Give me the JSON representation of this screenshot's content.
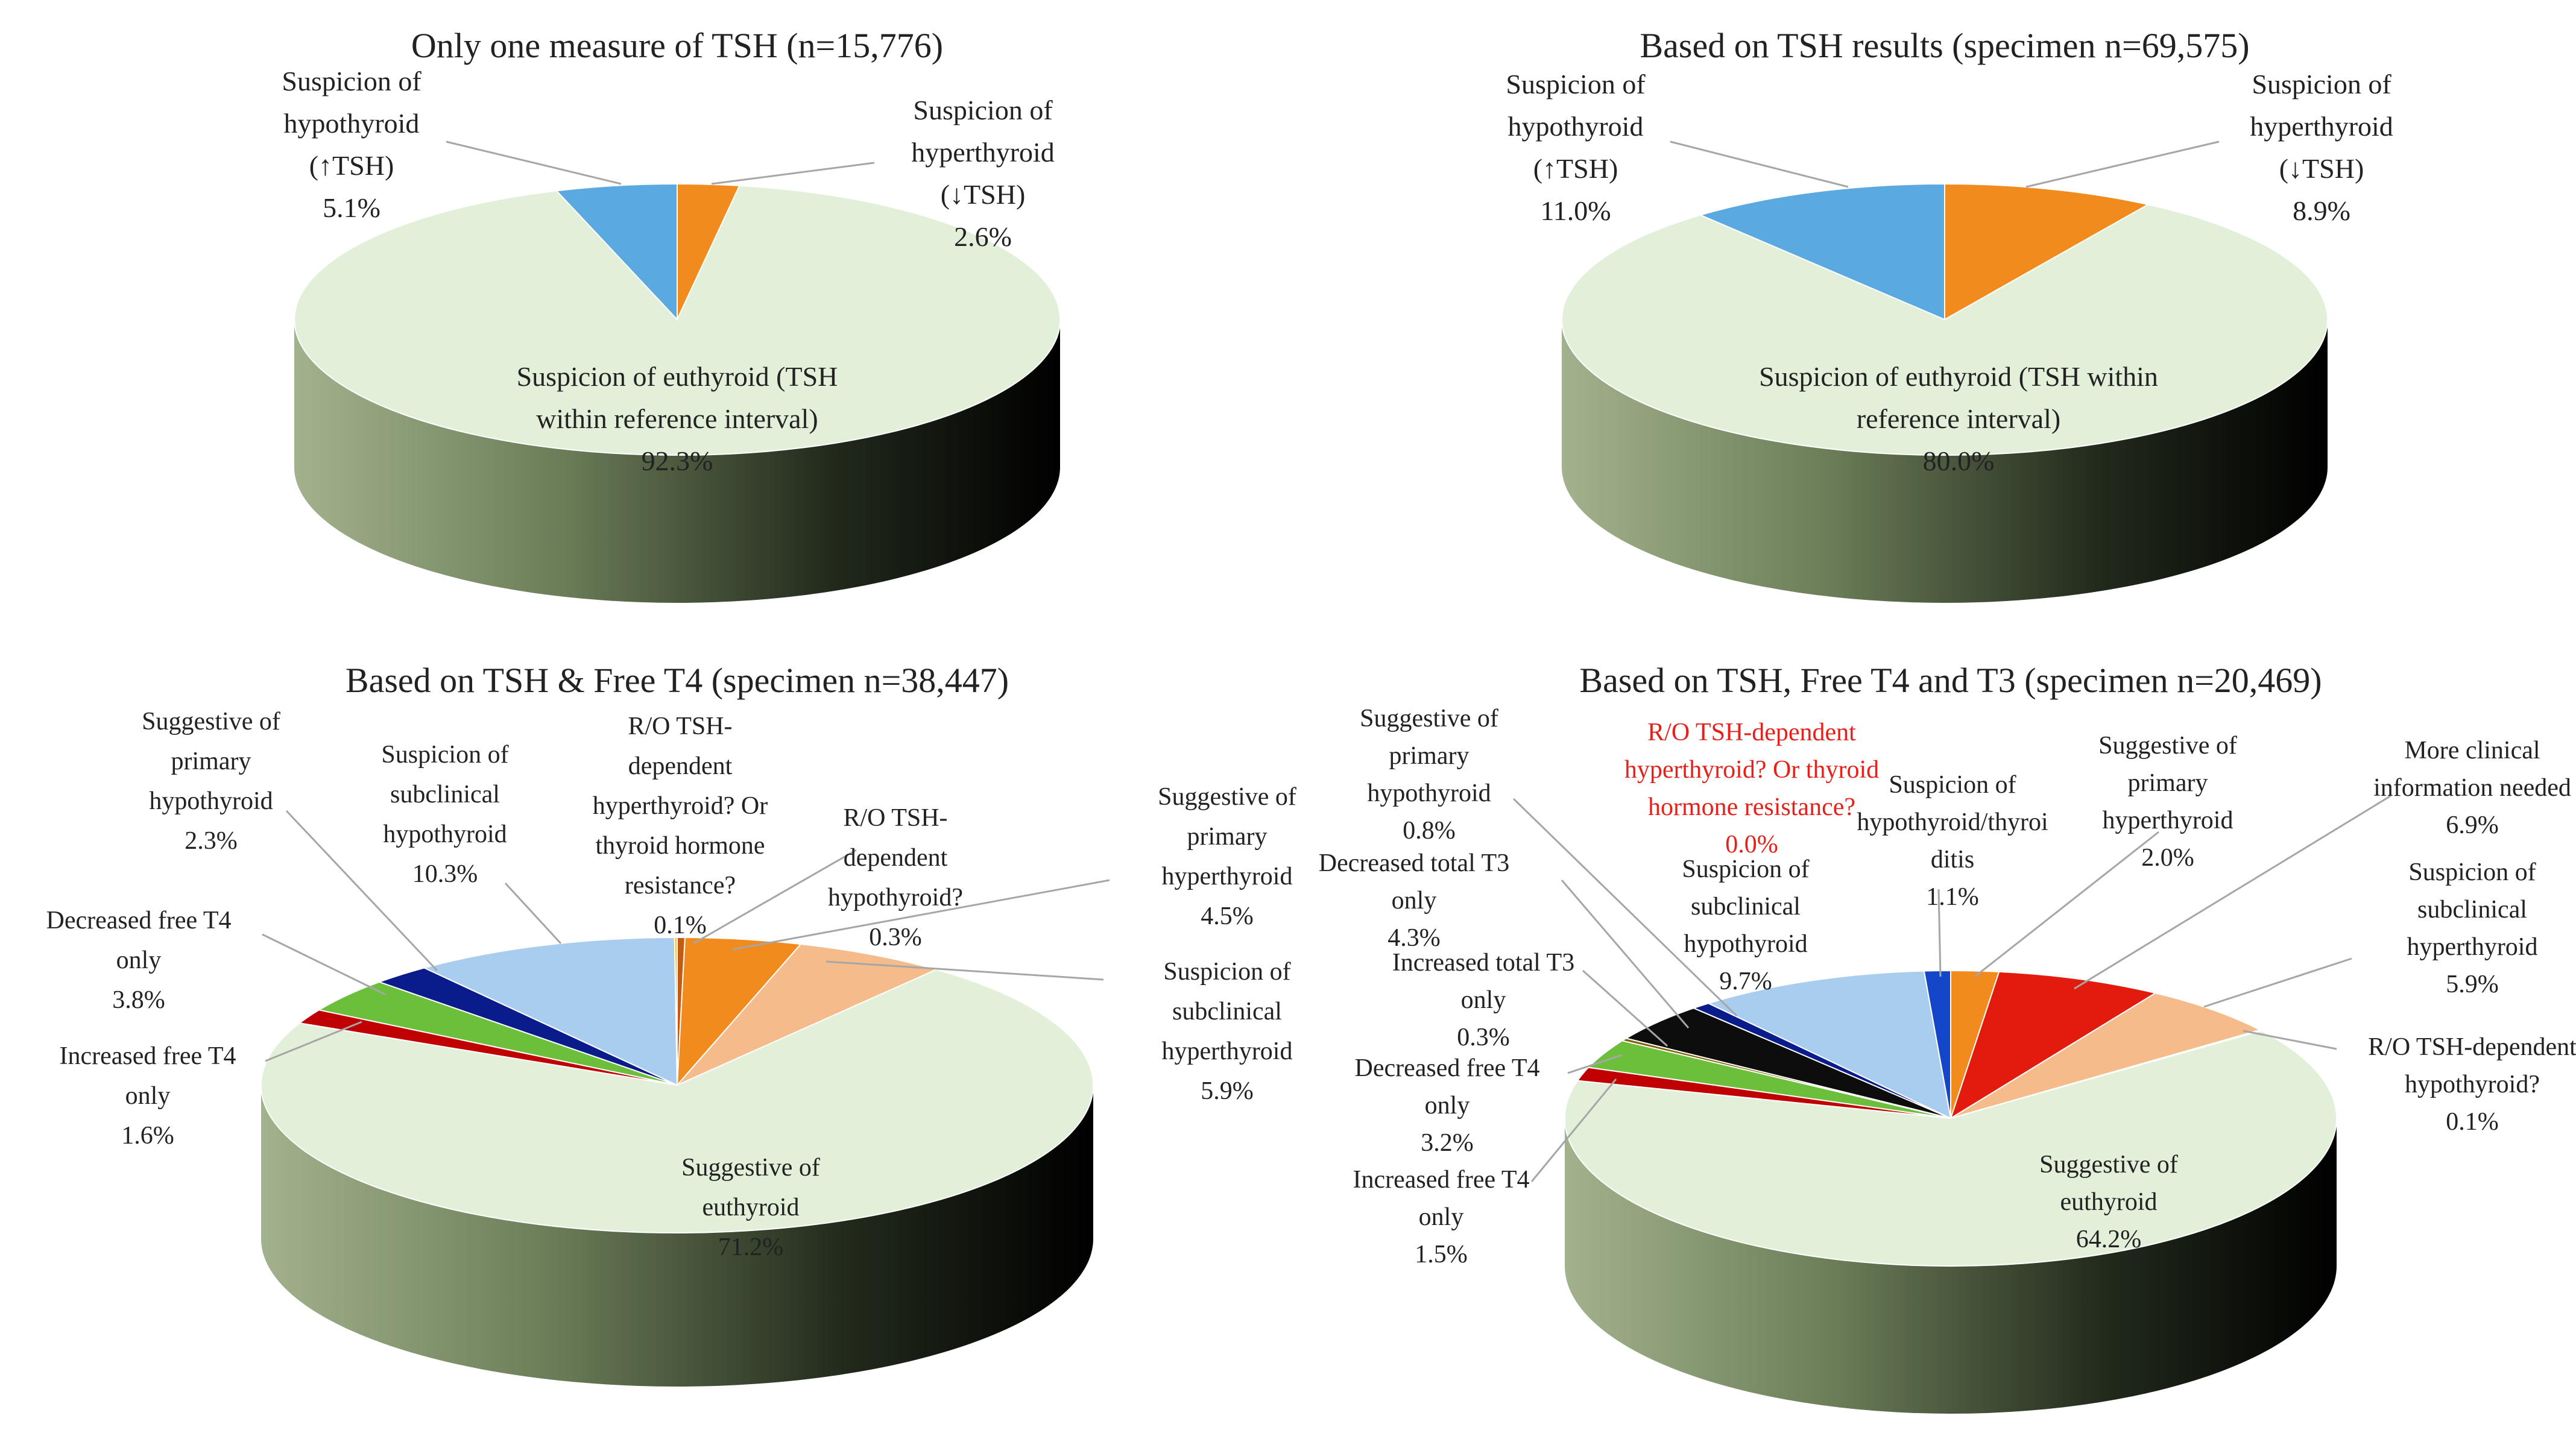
{
  "chart_data": [
    {
      "type": "pie",
      "style": "3d",
      "title": "Only one measure of TSH (n=15,776)",
      "slices": [
        {
          "label": [
            "Suspicion of",
            "hyperthyroid",
            "(↓TSH)"
          ],
          "percent_label": "2.6%",
          "value": 2.6,
          "color": "#f28b1d"
        },
        {
          "label": [
            "Suspicion of euthyroid (TSH",
            "within reference interval)"
          ],
          "percent_label": "92.3%",
          "value": 92.3,
          "color": "#e2efd9"
        },
        {
          "label": [
            "Suspicion of",
            "hypothyroid",
            "(↑TSH)"
          ],
          "percent_label": "5.1%",
          "value": 5.1,
          "color": "#5aaae1"
        }
      ]
    },
    {
      "type": "pie",
      "style": "3d",
      "title": "Based on TSH results (specimen n=69,575)",
      "slices": [
        {
          "label": [
            "Suspicion of",
            "hyperthyroid",
            "(↓TSH)"
          ],
          "percent_label": "8.9%",
          "value": 8.9,
          "color": "#f28b1d"
        },
        {
          "label": [
            "Suspicion of euthyroid (TSH within",
            "reference interval)"
          ],
          "percent_label": "80.0%",
          "value": 80.0,
          "color": "#e2efd9"
        },
        {
          "label": [
            "Suspicion of",
            "hypothyroid",
            "(↑TSH)"
          ],
          "percent_label": "11.0%",
          "value": 11.0,
          "color": "#5aaae1"
        }
      ]
    },
    {
      "type": "pie",
      "style": "3d",
      "title": "Based on TSH & Free T4 (specimen n=38,447)",
      "slices": [
        {
          "label": [
            "R/O TSH-",
            "dependent",
            "hypothyroid?"
          ],
          "percent_label": "0.3%",
          "value": 0.3,
          "color": "#c55a11"
        },
        {
          "label": [
            "Suggestive of",
            "primary",
            "hyperthyroid"
          ],
          "percent_label": "4.5%",
          "value": 4.5,
          "color": "#f28b1d"
        },
        {
          "label": [
            "Suspicion of",
            "subclinical",
            "hyperthyroid"
          ],
          "percent_label": "5.9%",
          "value": 5.9,
          "color": "#f5bb8b"
        },
        {
          "label": [
            "Suggestive of",
            "euthyroid"
          ],
          "percent_label": "71.2%",
          "value": 71.2,
          "color": "#e2efd9"
        },
        {
          "label": [
            "Increased free T4",
            "only"
          ],
          "percent_label": "1.6%",
          "value": 1.6,
          "color": "#c00000"
        },
        {
          "label": [
            "Decreased free T4",
            "only"
          ],
          "percent_label": "3.8%",
          "value": 3.8,
          "color": "#6bbf3b"
        },
        {
          "label": [
            "Suggestive of",
            "primary",
            "hypothyroid"
          ],
          "percent_label": "2.3%",
          "value": 2.3,
          "color": "#0a1c8c"
        },
        {
          "label": [
            "Suspicion of",
            "subclinical",
            "hypothyroid"
          ],
          "percent_label": "10.3%",
          "value": 10.3,
          "color": "#a9cdee"
        },
        {
          "label": [
            "R/O TSH-",
            "dependent",
            "hyperthyroid? Or",
            "thyroid hormone",
            "resistance?"
          ],
          "percent_label": "0.1%",
          "value": 0.1,
          "color": "#ffc000"
        }
      ]
    },
    {
      "type": "pie",
      "style": "3d",
      "title": "Based on TSH, Free T4 and T3 (specimen n=20,469)",
      "slices": [
        {
          "label": [
            "Suggestive of",
            "primary",
            "hyperthyroid"
          ],
          "percent_label": "2.0%",
          "value": 2.0,
          "color": "#f28b1d"
        },
        {
          "label": [
            "More clinical",
            "information needed"
          ],
          "percent_label": "6.9%",
          "value": 6.9,
          "color": "#e31b0c"
        },
        {
          "label": [
            "Suspicion of",
            "subclinical",
            "hyperthyroid"
          ],
          "percent_label": "5.9%",
          "value": 5.9,
          "color": "#f5bb8b"
        },
        {
          "label": [
            "R/O TSH-dependent",
            "hypothyroid?"
          ],
          "percent_label": "0.1%",
          "value": 0.1,
          "color": "#c55a11"
        },
        {
          "label": [
            "Suggestive of",
            "euthyroid"
          ],
          "percent_label": "64.2%",
          "value": 64.2,
          "color": "#e2efd9"
        },
        {
          "label": [
            "Increased free T4",
            "only"
          ],
          "percent_label": "1.5%",
          "value": 1.5,
          "color": "#c00000"
        },
        {
          "label": [
            "Decreased free T4",
            "only"
          ],
          "percent_label": "3.2%",
          "value": 3.2,
          "color": "#6bbf3b"
        },
        {
          "label": [
            "Increased total T3",
            "only"
          ],
          "percent_label": "0.3%",
          "value": 0.3,
          "color": "#7f6000"
        },
        {
          "label": [
            "Decreased total T3",
            "only"
          ],
          "percent_label": "4.3%",
          "value": 4.3,
          "color": "#0d0d0d"
        },
        {
          "label": [
            "Suggestive of",
            "primary",
            "hypothyroid"
          ],
          "percent_label": "0.8%",
          "value": 0.8,
          "color": "#0a1c8c"
        },
        {
          "label": [
            "Suspicion of",
            "subclinical",
            "hypothyroid"
          ],
          "percent_label": "9.7%",
          "value": 9.7,
          "color": "#a9cdee"
        },
        {
          "label": [
            "R/O TSH-dependent",
            "hyperthyroid? Or thyroid",
            "hormone resistance?"
          ],
          "percent_label": "0.0%",
          "value": 0.0,
          "color": "#ffc000",
          "label_color": "#e8201a"
        },
        {
          "label": [
            "Suspicion of",
            "hypothyroid/thyroi",
            "ditis"
          ],
          "percent_label": "1.1%",
          "value": 1.1,
          "color": "#1346c8"
        }
      ]
    }
  ]
}
